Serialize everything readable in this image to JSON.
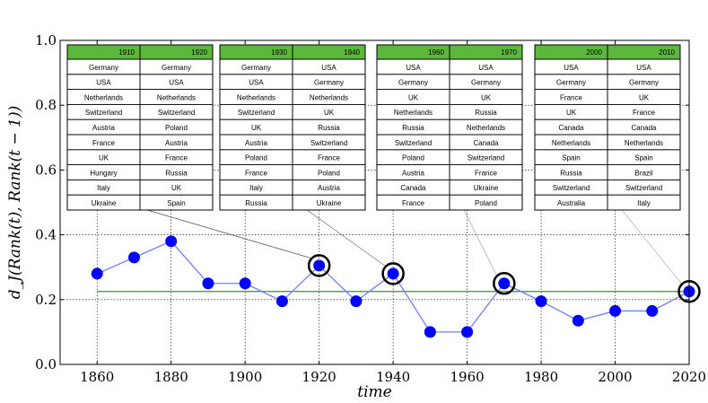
{
  "chart_data": {
    "type": "line",
    "title": "",
    "xlabel": "time",
    "ylabel": "d_J(Rank(t), Rank(t − 1))",
    "xlim": [
      1850,
      2020
    ],
    "ylim": [
      0.0,
      1.0
    ],
    "xticks": [
      1860,
      1880,
      1900,
      1920,
      1940,
      1960,
      1980,
      2000,
      2020
    ],
    "xtick_labels": [
      "1860",
      "1880",
      "1900",
      "1920",
      "1940",
      "1960",
      "1980",
      "2000",
      "2020"
    ],
    "yticks": [
      0.0,
      0.2,
      0.4,
      0.6,
      0.8,
      1.0
    ],
    "ytick_labels": [
      "0.0",
      "0.2",
      "0.4",
      "0.6",
      "0.8",
      "1.0"
    ],
    "grid": true,
    "series": [
      {
        "x": [
          1860,
          1870,
          1880,
          1890,
          1900,
          1910,
          1920,
          1930,
          1940,
          1950,
          1960,
          1970,
          1980,
          1990,
          2000,
          2010,
          2020
        ],
        "y": [
          0.28,
          0.33,
          0.38,
          0.25,
          0.25,
          0.195,
          0.305,
          0.195,
          0.28,
          0.1,
          0.1,
          0.25,
          0.195,
          0.135,
          0.165,
          0.165,
          0.225
        ],
        "color": "#0000ff",
        "line_color": "#6f7fff"
      }
    ],
    "reference_line": {
      "y": 0.225,
      "color": "#2a9a2a"
    },
    "highlighted_x": [
      1920,
      1940,
      1970,
      2020
    ],
    "inset_tables": [
      {
        "headers": [
          "1910",
          "1920"
        ],
        "rows": [
          [
            "Germany",
            "Germany"
          ],
          [
            "USA",
            "USA"
          ],
          [
            "Netherlands",
            "Netherlands"
          ],
          [
            "Switzerland",
            "Switzerland"
          ],
          [
            "Austria",
            "Poland"
          ],
          [
            "France",
            "Austria"
          ],
          [
            "UK",
            "France"
          ],
          [
            "Hungary",
            "Russia"
          ],
          [
            "Italy",
            "UK"
          ],
          [
            "Ukraine",
            "Spain"
          ]
        ],
        "points_to_x": 1920
      },
      {
        "headers": [
          "1930",
          "1940"
        ],
        "rows": [
          [
            "Germany",
            "USA"
          ],
          [
            "USA",
            "Germany"
          ],
          [
            "Netherlands",
            "Netherlands"
          ],
          [
            "Switzerland",
            "UK"
          ],
          [
            "UK",
            "Russia"
          ],
          [
            "Austria",
            "Switzerland"
          ],
          [
            "Poland",
            "France"
          ],
          [
            "France",
            "Poland"
          ],
          [
            "Italy",
            "Austria"
          ],
          [
            "Russia",
            "Ukraine"
          ]
        ],
        "points_to_x": 1940
      },
      {
        "headers": [
          "1960",
          "1970"
        ],
        "rows": [
          [
            "USA",
            "USA"
          ],
          [
            "Germany",
            "Germany"
          ],
          [
            "UK",
            "UK"
          ],
          [
            "Netherlands",
            "Russia"
          ],
          [
            "Russia",
            "Netherlands"
          ],
          [
            "Switzerland",
            "Canada"
          ],
          [
            "Poland",
            "Switzerland"
          ],
          [
            "Austria",
            "France"
          ],
          [
            "Canada",
            "Ukraine"
          ],
          [
            "France",
            "Poland"
          ]
        ],
        "points_to_x": 1970
      },
      {
        "headers": [
          "2000",
          "2010"
        ],
        "rows": [
          [
            "USA",
            "USA"
          ],
          [
            "Germany",
            "Germany"
          ],
          [
            "France",
            "UK"
          ],
          [
            "UK",
            "France"
          ],
          [
            "Canada",
            "Canada"
          ],
          [
            "Netherlands",
            "Netherlands"
          ],
          [
            "Spain",
            "Spain"
          ],
          [
            "Russia",
            "Brazil"
          ],
          [
            "Switzerland",
            "Switzerland"
          ],
          [
            "Australia",
            "Italy"
          ]
        ],
        "points_to_x": 2020
      }
    ],
    "colors": {
      "header_fill": "#5cb83c",
      "marker": "#0000ff",
      "line": "#6f7fff",
      "reference": "#2a9a2a"
    }
  }
}
